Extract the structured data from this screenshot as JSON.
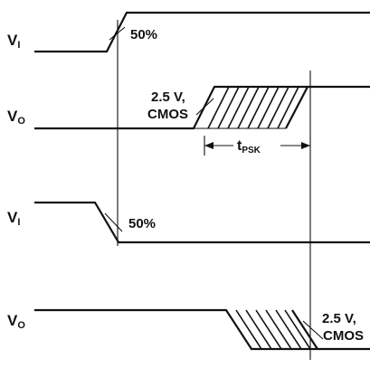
{
  "signals": [
    {
      "name_main": "V",
      "name_sub": "I"
    },
    {
      "name_main": "V",
      "name_sub": "O"
    },
    {
      "name_main": "V",
      "name_sub": "I"
    },
    {
      "name_main": "V",
      "name_sub": "O"
    }
  ],
  "annotations": {
    "rise_threshold": "50%",
    "fall_threshold": "50%",
    "out1_level_line1": "2.5 V,",
    "out1_level_line2": "CMOS",
    "out2_level_line1": "2.5 V,",
    "out2_level_line2": "CMOS",
    "skew_main": "t",
    "skew_sub": "PSK"
  }
}
